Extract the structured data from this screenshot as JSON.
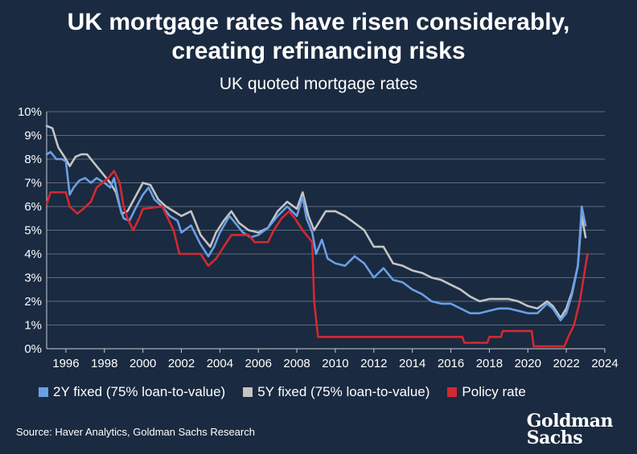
{
  "header": {
    "title_line1": "UK mortgage rates have risen considerably,",
    "title_line2": "creating refinancing risks",
    "subtitle": "UK quoted mortgage rates"
  },
  "footer": {
    "source": "Source: Haver Analytics, Goldman Sachs Research",
    "logo_line1": "Goldman",
    "logo_line2": "Sachs"
  },
  "colors": {
    "background": "#1a2a40",
    "grid": "#5d6b7e"
  },
  "chart_data": {
    "type": "line",
    "title": "UK quoted mortgage rates",
    "xlabel": "",
    "ylabel": "",
    "xlim": [
      1995.0,
      2024.0
    ],
    "ylim": [
      0,
      10
    ],
    "x_ticks": [
      1996,
      1998,
      2000,
      2002,
      2004,
      2006,
      2008,
      2010,
      2012,
      2014,
      2016,
      2018,
      2020,
      2022,
      2024
    ],
    "y_ticks": [
      "0%",
      "1%",
      "2%",
      "3%",
      "4%",
      "5%",
      "6%",
      "7%",
      "8%",
      "9%",
      "10%"
    ],
    "grid": true,
    "legend_position": "bottom",
    "series": [
      {
        "name": "2Y fixed (75% loan-to-value)",
        "color": "#6a9fe6",
        "points": [
          [
            1995.0,
            8.2
          ],
          [
            1995.2,
            8.3
          ],
          [
            1995.5,
            8.0
          ],
          [
            1995.8,
            8.0
          ],
          [
            1996.0,
            7.9
          ],
          [
            1996.2,
            6.5
          ],
          [
            1996.4,
            6.8
          ],
          [
            1996.7,
            7.1
          ],
          [
            1997.0,
            7.2
          ],
          [
            1997.3,
            7.0
          ],
          [
            1997.6,
            7.2
          ],
          [
            1998.0,
            7.0
          ],
          [
            1998.3,
            6.8
          ],
          [
            1998.5,
            7.2
          ],
          [
            1998.8,
            6.0
          ],
          [
            1999.0,
            5.5
          ],
          [
            1999.3,
            5.4
          ],
          [
            1999.6,
            5.9
          ],
          [
            2000.0,
            6.5
          ],
          [
            2000.3,
            6.8
          ],
          [
            2000.6,
            6.3
          ],
          [
            2001.0,
            6.0
          ],
          [
            2001.4,
            5.6
          ],
          [
            2001.8,
            5.4
          ],
          [
            2002.0,
            4.9
          ],
          [
            2002.5,
            5.2
          ],
          [
            2003.0,
            4.4
          ],
          [
            2003.4,
            3.9
          ],
          [
            2003.7,
            4.3
          ],
          [
            2004.0,
            4.9
          ],
          [
            2004.5,
            5.6
          ],
          [
            2004.8,
            5.3
          ],
          [
            2005.2,
            4.9
          ],
          [
            2005.6,
            4.7
          ],
          [
            2006.0,
            4.8
          ],
          [
            2006.5,
            5.1
          ],
          [
            2007.0,
            5.6
          ],
          [
            2007.5,
            6.0
          ],
          [
            2008.0,
            5.6
          ],
          [
            2008.3,
            6.4
          ],
          [
            2008.5,
            5.5
          ],
          [
            2008.8,
            4.9
          ],
          [
            2009.0,
            4.0
          ],
          [
            2009.3,
            4.6
          ],
          [
            2009.6,
            3.8
          ],
          [
            2010.0,
            3.6
          ],
          [
            2010.5,
            3.5
          ],
          [
            2011.0,
            3.9
          ],
          [
            2011.5,
            3.6
          ],
          [
            2012.0,
            3.0
          ],
          [
            2012.5,
            3.4
          ],
          [
            2013.0,
            2.9
          ],
          [
            2013.5,
            2.8
          ],
          [
            2014.0,
            2.5
          ],
          [
            2014.5,
            2.3
          ],
          [
            2015.0,
            2.0
          ],
          [
            2015.5,
            1.9
          ],
          [
            2016.0,
            1.9
          ],
          [
            2016.5,
            1.7
          ],
          [
            2017.0,
            1.5
          ],
          [
            2017.5,
            1.5
          ],
          [
            2018.0,
            1.6
          ],
          [
            2018.5,
            1.7
          ],
          [
            2019.0,
            1.7
          ],
          [
            2019.5,
            1.6
          ],
          [
            2020.0,
            1.5
          ],
          [
            2020.5,
            1.5
          ],
          [
            2021.0,
            1.9
          ],
          [
            2021.3,
            1.7
          ],
          [
            2021.7,
            1.2
          ],
          [
            2022.0,
            1.5
          ],
          [
            2022.3,
            2.3
          ],
          [
            2022.6,
            3.5
          ],
          [
            2022.8,
            6.0
          ],
          [
            2023.0,
            5.2
          ]
        ]
      },
      {
        "name": "5Y fixed (75% loan-to-value)",
        "color": "#c4c4c4",
        "points": [
          [
            1995.0,
            9.4
          ],
          [
            1995.3,
            9.3
          ],
          [
            1995.6,
            8.5
          ],
          [
            1996.0,
            8.0
          ],
          [
            1996.2,
            7.7
          ],
          [
            1996.5,
            8.1
          ],
          [
            1996.8,
            8.2
          ],
          [
            1997.1,
            8.2
          ],
          [
            1997.5,
            7.8
          ],
          [
            1998.0,
            7.3
          ],
          [
            1998.3,
            7.0
          ],
          [
            1998.6,
            6.6
          ],
          [
            1998.9,
            5.7
          ],
          [
            1999.2,
            5.8
          ],
          [
            1999.6,
            6.4
          ],
          [
            2000.0,
            7.0
          ],
          [
            2000.4,
            6.9
          ],
          [
            2000.8,
            6.3
          ],
          [
            2001.2,
            6.0
          ],
          [
            2001.6,
            5.8
          ],
          [
            2002.0,
            5.6
          ],
          [
            2002.5,
            5.8
          ],
          [
            2003.0,
            4.8
          ],
          [
            2003.5,
            4.3
          ],
          [
            2003.8,
            4.9
          ],
          [
            2004.2,
            5.4
          ],
          [
            2004.6,
            5.8
          ],
          [
            2005.0,
            5.3
          ],
          [
            2005.5,
            5.0
          ],
          [
            2006.0,
            4.9
          ],
          [
            2006.5,
            5.1
          ],
          [
            2007.0,
            5.8
          ],
          [
            2007.5,
            6.2
          ],
          [
            2008.0,
            5.9
          ],
          [
            2008.3,
            6.6
          ],
          [
            2008.6,
            5.6
          ],
          [
            2008.9,
            5.0
          ],
          [
            2009.2,
            5.4
          ],
          [
            2009.5,
            5.8
          ],
          [
            2010.0,
            5.8
          ],
          [
            2010.5,
            5.6
          ],
          [
            2011.0,
            5.3
          ],
          [
            2011.5,
            5.0
          ],
          [
            2012.0,
            4.3
          ],
          [
            2012.5,
            4.3
          ],
          [
            2013.0,
            3.6
          ],
          [
            2013.5,
            3.5
          ],
          [
            2014.0,
            3.3
          ],
          [
            2014.5,
            3.2
          ],
          [
            2015.0,
            3.0
          ],
          [
            2015.5,
            2.9
          ],
          [
            2016.0,
            2.7
          ],
          [
            2016.5,
            2.5
          ],
          [
            2017.0,
            2.2
          ],
          [
            2017.5,
            2.0
          ],
          [
            2018.0,
            2.1
          ],
          [
            2018.5,
            2.1
          ],
          [
            2019.0,
            2.1
          ],
          [
            2019.5,
            2.0
          ],
          [
            2020.0,
            1.8
          ],
          [
            2020.5,
            1.7
          ],
          [
            2021.0,
            2.0
          ],
          [
            2021.3,
            1.8
          ],
          [
            2021.7,
            1.3
          ],
          [
            2022.0,
            1.7
          ],
          [
            2022.3,
            2.4
          ],
          [
            2022.6,
            3.5
          ],
          [
            2022.8,
            5.6
          ],
          [
            2023.0,
            4.7
          ]
        ]
      },
      {
        "name": "Policy rate",
        "color": "#d42832",
        "points": [
          [
            1995.0,
            6.1
          ],
          [
            1995.2,
            6.6
          ],
          [
            1996.0,
            6.6
          ],
          [
            1996.2,
            6.0
          ],
          [
            1996.6,
            5.7
          ],
          [
            1996.9,
            5.9
          ],
          [
            1997.3,
            6.2
          ],
          [
            1997.6,
            6.8
          ],
          [
            1997.9,
            7.0
          ],
          [
            1998.2,
            7.2
          ],
          [
            1998.5,
            7.5
          ],
          [
            1998.8,
            7.0
          ],
          [
            1999.0,
            6.0
          ],
          [
            1999.2,
            5.5
          ],
          [
            1999.5,
            5.0
          ],
          [
            1999.8,
            5.5
          ],
          [
            2000.0,
            5.9
          ],
          [
            2001.0,
            6.0
          ],
          [
            2001.3,
            5.5
          ],
          [
            2001.6,
            5.0
          ],
          [
            2001.9,
            4.0
          ],
          [
            2003.0,
            4.0
          ],
          [
            2003.4,
            3.5
          ],
          [
            2003.8,
            3.8
          ],
          [
            2004.2,
            4.3
          ],
          [
            2004.6,
            4.8
          ],
          [
            2005.5,
            4.8
          ],
          [
            2005.8,
            4.5
          ],
          [
            2006.5,
            4.5
          ],
          [
            2006.8,
            5.0
          ],
          [
            2007.2,
            5.5
          ],
          [
            2007.6,
            5.8
          ],
          [
            2007.9,
            5.5
          ],
          [
            2008.3,
            5.0
          ],
          [
            2008.8,
            4.5
          ],
          [
            2008.9,
            2.0
          ],
          [
            2009.1,
            0.5
          ],
          [
            2016.6,
            0.5
          ],
          [
            2016.7,
            0.25
          ],
          [
            2017.9,
            0.25
          ],
          [
            2018.0,
            0.5
          ],
          [
            2018.6,
            0.5
          ],
          [
            2018.7,
            0.75
          ],
          [
            2020.2,
            0.75
          ],
          [
            2020.3,
            0.1
          ],
          [
            2021.9,
            0.1
          ],
          [
            2022.1,
            0.5
          ],
          [
            2022.4,
            1.0
          ],
          [
            2022.7,
            2.0
          ],
          [
            2022.9,
            3.0
          ],
          [
            2023.1,
            4.0
          ]
        ]
      }
    ]
  }
}
